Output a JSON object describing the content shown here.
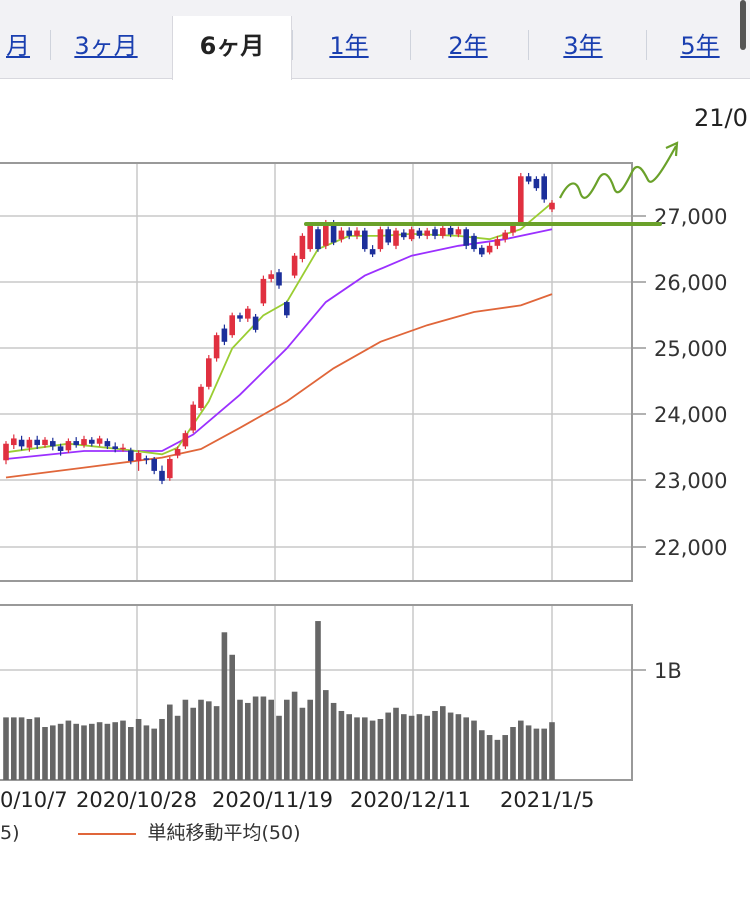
{
  "tabs": [
    {
      "label": "月",
      "active": false
    },
    {
      "label": "3ヶ月",
      "active": false
    },
    {
      "label": "6ヶ月",
      "active": true
    },
    {
      "label": "1年",
      "active": false
    },
    {
      "label": "2年",
      "active": false
    },
    {
      "label": "3年",
      "active": false
    },
    {
      "label": "5年",
      "active": false
    }
  ],
  "header_date": "21/0",
  "legend": {
    "prev_fragment": "5)",
    "sma50_label": "単純移動平均(50)"
  },
  "colors": {
    "up": "#e03040",
    "down": "#1c2f9a",
    "sma_short": "#9acd32",
    "sma_mid": "#9b30ff",
    "sma50": "#e0663a",
    "annotation": "#6aa12a",
    "volume": "#666666",
    "grid": "#c8c8c8"
  },
  "chart_data": {
    "type": "candlestick",
    "y_ticks": [
      "22,000",
      "23,000",
      "24,000",
      "25,000",
      "26,000",
      "27,000"
    ],
    "ylim": [
      21600,
      28000
    ],
    "x_ticks": [
      "0/10/7",
      "2020/10/28",
      "2020/11/19",
      "2020/12/11",
      "2021/1/5"
    ],
    "volume_tick": "1B",
    "candles": [
      {
        "o": 23310,
        "c": 23560,
        "h": 23600,
        "l": 23250
      },
      {
        "o": 23540,
        "c": 23640,
        "h": 23700,
        "l": 23480
      },
      {
        "o": 23620,
        "c": 23520,
        "h": 23680,
        "l": 23460
      },
      {
        "o": 23500,
        "c": 23620,
        "h": 23660,
        "l": 23440
      },
      {
        "o": 23620,
        "c": 23540,
        "h": 23680,
        "l": 23480
      },
      {
        "o": 23540,
        "c": 23620,
        "h": 23660,
        "l": 23500
      },
      {
        "o": 23600,
        "c": 23520,
        "h": 23650,
        "l": 23460
      },
      {
        "o": 23520,
        "c": 23450,
        "h": 23560,
        "l": 23380
      },
      {
        "o": 23460,
        "c": 23600,
        "h": 23640,
        "l": 23420
      },
      {
        "o": 23600,
        "c": 23540,
        "h": 23660,
        "l": 23500
      },
      {
        "o": 23540,
        "c": 23630,
        "h": 23680,
        "l": 23500
      },
      {
        "o": 23620,
        "c": 23560,
        "h": 23660,
        "l": 23520
      },
      {
        "o": 23560,
        "c": 23640,
        "h": 23680,
        "l": 23520
      },
      {
        "o": 23600,
        "c": 23520,
        "h": 23640,
        "l": 23480
      },
      {
        "o": 23520,
        "c": 23480,
        "h": 23580,
        "l": 23430
      },
      {
        "o": 23480,
        "c": 23500,
        "h": 23560,
        "l": 23440
      },
      {
        "o": 23460,
        "c": 23300,
        "h": 23500,
        "l": 23250
      },
      {
        "o": 23300,
        "c": 23420,
        "h": 23460,
        "l": 23150
      },
      {
        "o": 23340,
        "c": 23330,
        "h": 23380,
        "l": 23250
      },
      {
        "o": 23330,
        "c": 23150,
        "h": 23360,
        "l": 23100
      },
      {
        "o": 23150,
        "c": 23000,
        "h": 23230,
        "l": 22950
      },
      {
        "o": 23040,
        "c": 23330,
        "h": 23360,
        "l": 23000
      },
      {
        "o": 23380,
        "c": 23480,
        "h": 23520,
        "l": 23340
      },
      {
        "o": 23520,
        "c": 23720,
        "h": 23760,
        "l": 23480
      },
      {
        "o": 23760,
        "c": 24150,
        "h": 24200,
        "l": 23720
      },
      {
        "o": 24100,
        "c": 24420,
        "h": 24460,
        "l": 24060
      },
      {
        "o": 24420,
        "c": 24850,
        "h": 24900,
        "l": 24380
      },
      {
        "o": 24850,
        "c": 25200,
        "h": 25240,
        "l": 24800
      },
      {
        "o": 25300,
        "c": 25100,
        "h": 25360,
        "l": 25050
      },
      {
        "o": 25200,
        "c": 25500,
        "h": 25540,
        "l": 25160
      },
      {
        "o": 25500,
        "c": 25450,
        "h": 25540,
        "l": 25400
      },
      {
        "o": 25450,
        "c": 25600,
        "h": 25640,
        "l": 25400
      },
      {
        "o": 25480,
        "c": 25280,
        "h": 25520,
        "l": 25240
      },
      {
        "o": 25680,
        "c": 26050,
        "h": 26100,
        "l": 25640
      },
      {
        "o": 26050,
        "c": 26120,
        "h": 26180,
        "l": 26000
      },
      {
        "o": 26150,
        "c": 25950,
        "h": 26200,
        "l": 25900
      },
      {
        "o": 25700,
        "c": 25500,
        "h": 25720,
        "l": 25460
      },
      {
        "o": 26100,
        "c": 26400,
        "h": 26440,
        "l": 26060
      },
      {
        "o": 26350,
        "c": 26700,
        "h": 26740,
        "l": 26300
      },
      {
        "o": 26500,
        "c": 26850,
        "h": 26900,
        "l": 26460
      },
      {
        "o": 26800,
        "c": 26500,
        "h": 26840,
        "l": 26460
      },
      {
        "o": 26550,
        "c": 26900,
        "h": 26940,
        "l": 26500
      },
      {
        "o": 26900,
        "c": 26600,
        "h": 26940,
        "l": 26560
      },
      {
        "o": 26650,
        "c": 26780,
        "h": 26830,
        "l": 26600
      },
      {
        "o": 26780,
        "c": 26700,
        "h": 26830,
        "l": 26650
      },
      {
        "o": 26700,
        "c": 26780,
        "h": 26830,
        "l": 26650
      },
      {
        "o": 26780,
        "c": 26500,
        "h": 26820,
        "l": 26460
      },
      {
        "o": 26500,
        "c": 26420,
        "h": 26560,
        "l": 26380
      },
      {
        "o": 26500,
        "c": 26800,
        "h": 26840,
        "l": 26460
      },
      {
        "o": 26800,
        "c": 26600,
        "h": 26840,
        "l": 26560
      },
      {
        "o": 26550,
        "c": 26780,
        "h": 26820,
        "l": 26500
      },
      {
        "o": 26750,
        "c": 26680,
        "h": 26800,
        "l": 26640
      },
      {
        "o": 26650,
        "c": 26800,
        "h": 26840,
        "l": 26620
      },
      {
        "o": 26780,
        "c": 26700,
        "h": 26820,
        "l": 26660
      },
      {
        "o": 26700,
        "c": 26780,
        "h": 26820,
        "l": 26650
      },
      {
        "o": 26800,
        "c": 26700,
        "h": 26840,
        "l": 26650
      },
      {
        "o": 26700,
        "c": 26820,
        "h": 26860,
        "l": 26660
      },
      {
        "o": 26820,
        "c": 26720,
        "h": 26860,
        "l": 26680
      },
      {
        "o": 26720,
        "c": 26800,
        "h": 26840,
        "l": 26680
      },
      {
        "o": 26800,
        "c": 26550,
        "h": 26830,
        "l": 26500
      },
      {
        "o": 26700,
        "c": 26500,
        "h": 26740,
        "l": 26460
      },
      {
        "o": 26520,
        "c": 26420,
        "h": 26560,
        "l": 26380
      },
      {
        "o": 26450,
        "c": 26550,
        "h": 26600,
        "l": 26420
      },
      {
        "o": 26550,
        "c": 26650,
        "h": 26700,
        "l": 26500
      },
      {
        "o": 26650,
        "c": 26750,
        "h": 26790,
        "l": 26600
      },
      {
        "o": 26750,
        "c": 26850,
        "h": 26880,
        "l": 26700
      },
      {
        "o": 26900,
        "c": 27600,
        "h": 27650,
        "l": 26860
      },
      {
        "o": 27600,
        "c": 27520,
        "h": 27650,
        "l": 27480
      },
      {
        "o": 27560,
        "c": 27420,
        "h": 27600,
        "l": 27380
      },
      {
        "o": 27600,
        "c": 27250,
        "h": 27640,
        "l": 27200
      },
      {
        "o": 27100,
        "c": 27200,
        "h": 27240,
        "l": 27060
      }
    ],
    "sma_short_points": [
      [
        0,
        23430
      ],
      [
        8,
        23560
      ],
      [
        16,
        23460
      ],
      [
        20,
        23400
      ],
      [
        22,
        23500
      ],
      [
        26,
        24200
      ],
      [
        29,
        25000
      ],
      [
        33,
        25500
      ],
      [
        36,
        25700
      ],
      [
        40,
        26500
      ],
      [
        44,
        26700
      ],
      [
        48,
        26700
      ],
      [
        52,
        26730
      ],
      [
        58,
        26700
      ],
      [
        62,
        26650
      ],
      [
        66,
        26800
      ],
      [
        70,
        27200
      ]
    ],
    "sma_mid_points": [
      [
        0,
        23330
      ],
      [
        10,
        23450
      ],
      [
        20,
        23450
      ],
      [
        24,
        23700
      ],
      [
        30,
        24300
      ],
      [
        36,
        25000
      ],
      [
        41,
        25700
      ],
      [
        46,
        26100
      ],
      [
        52,
        26400
      ],
      [
        58,
        26550
      ],
      [
        64,
        26650
      ],
      [
        70,
        26800
      ]
    ],
    "sma50_points": [
      [
        0,
        23050
      ],
      [
        10,
        23200
      ],
      [
        20,
        23350
      ],
      [
        25,
        23480
      ],
      [
        30,
        23800
      ],
      [
        36,
        24200
      ],
      [
        42,
        24700
      ],
      [
        48,
        25100
      ],
      [
        54,
        25350
      ],
      [
        60,
        25550
      ],
      [
        66,
        25650
      ],
      [
        70,
        25820
      ]
    ],
    "volume": [
      0.39,
      0.39,
      0.39,
      0.38,
      0.39,
      0.33,
      0.34,
      0.35,
      0.37,
      0.35,
      0.34,
      0.35,
      0.36,
      0.35,
      0.36,
      0.37,
      0.33,
      0.38,
      0.34,
      0.32,
      0.38,
      0.47,
      0.4,
      0.5,
      0.45,
      0.5,
      0.49,
      0.46,
      0.92,
      0.78,
      0.5,
      0.48,
      0.52,
      0.52,
      0.5,
      0.4,
      0.5,
      0.55,
      0.45,
      0.5,
      0.99,
      0.56,
      0.48,
      0.43,
      0.41,
      0.39,
      0.39,
      0.37,
      0.38,
      0.42,
      0.45,
      0.41,
      0.4,
      0.41,
      0.4,
      0.43,
      0.46,
      0.42,
      0.41,
      0.39,
      0.37,
      0.31,
      0.28,
      0.25,
      0.28,
      0.33,
      0.37,
      0.34,
      0.32,
      0.32,
      0.36
    ]
  }
}
